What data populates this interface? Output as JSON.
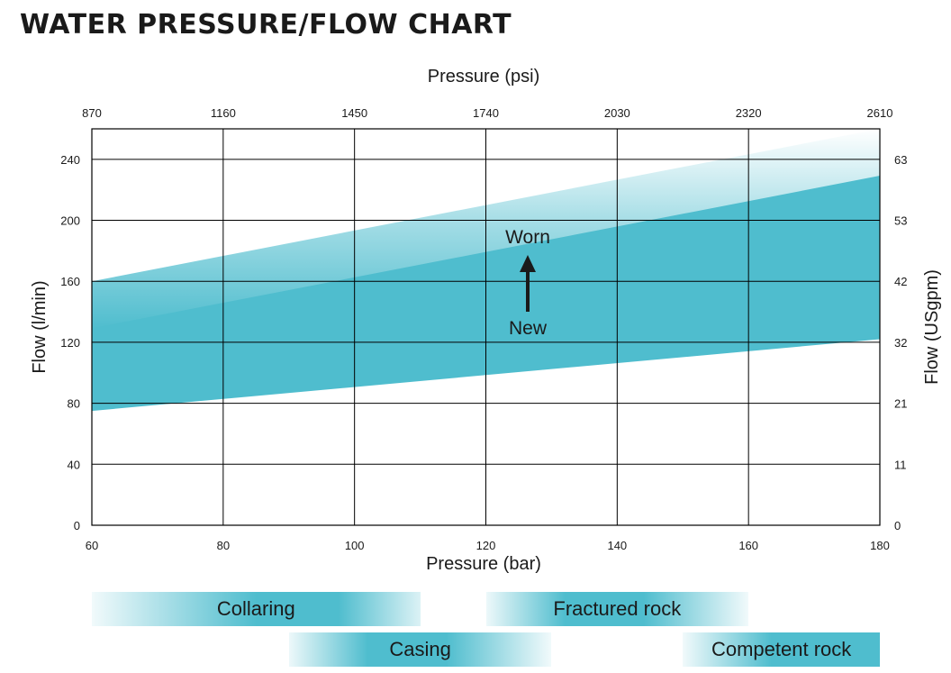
{
  "title": "WATER PRESSURE/FLOW CHART",
  "colors": {
    "band": "#4fbdce",
    "grid": "#000000"
  },
  "chart_data": {
    "type": "area",
    "title": "WATER PRESSURE/FLOW CHART",
    "xlabel": "Pressure (bar)",
    "x2label": "Pressure (psi)",
    "ylabel": "Flow (l/min)",
    "y2label": "Flow (USgpm)",
    "xlim": [
      60,
      180
    ],
    "ylim": [
      0,
      260
    ],
    "x_ticks": [
      60,
      80,
      100,
      120,
      140,
      160,
      180
    ],
    "x2_ticks": [
      870,
      1160,
      1450,
      1740,
      2030,
      2320,
      2610
    ],
    "y_ticks": [
      0,
      40,
      80,
      120,
      160,
      200,
      240
    ],
    "y2_ticks": [
      0,
      11,
      21,
      32,
      42,
      53,
      63
    ],
    "grid": true,
    "band": {
      "x": [
        60,
        180
      ],
      "lower": [
        75,
        122
      ],
      "upper": [
        160,
        260
      ]
    },
    "annotations": {
      "upper": "Worn",
      "lower": "New"
    }
  },
  "ranges": [
    {
      "label": "Collaring",
      "from": 60,
      "to": 110,
      "fade": "left"
    },
    {
      "label": "Fractured rock",
      "from": 120,
      "to": 160,
      "fade": "both"
    },
    {
      "label": "Casing",
      "from": 90,
      "to": 130,
      "fade": "both"
    },
    {
      "label": "Competent rock",
      "from": 150,
      "to": 180,
      "fade": "left"
    }
  ]
}
